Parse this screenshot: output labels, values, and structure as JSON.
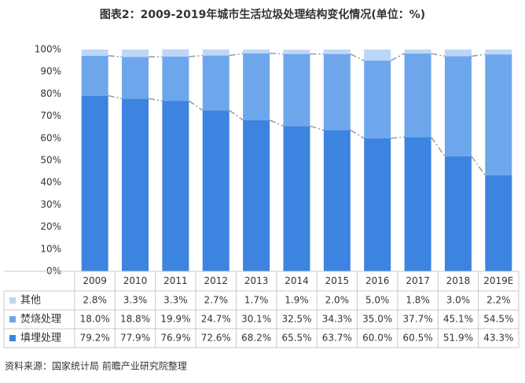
{
  "chart_data": {
    "type": "stacked_bar",
    "title": "图表2：2009-2019年城市生活垃圾处理结构变化情况(单位：%)",
    "categories": [
      "2009",
      "2010",
      "2011",
      "2012",
      "2013",
      "2014",
      "2015",
      "2016",
      "2017",
      "2018",
      "2019E"
    ],
    "series": [
      {
        "name": "其他",
        "color": "#bcd6f7",
        "values": [
          2.8,
          3.3,
          3.3,
          2.7,
          1.7,
          1.9,
          2.0,
          5.0,
          1.8,
          3.0,
          2.2
        ],
        "value_labels": [
          "2.8%",
          "3.3%",
          "3.3%",
          "2.7%",
          "1.7%",
          "1.9%",
          "2.0%",
          "5.0%",
          "1.8%",
          "3.0%",
          "2.2%"
        ]
      },
      {
        "name": "焚烧处理",
        "color": "#6ea6ec",
        "values": [
          18.0,
          18.8,
          19.9,
          24.7,
          30.1,
          32.5,
          34.3,
          35.0,
          37.7,
          45.1,
          54.5
        ],
        "value_labels": [
          "18.0%",
          "18.8%",
          "19.9%",
          "24.7%",
          "30.1%",
          "32.5%",
          "34.3%",
          "35.0%",
          "37.7%",
          "45.1%",
          "54.5%"
        ]
      },
      {
        "name": "填埋处理",
        "color": "#3c84e0",
        "values": [
          79.2,
          77.9,
          76.9,
          72.6,
          68.2,
          65.5,
          63.7,
          60.0,
          60.5,
          51.9,
          43.3
        ],
        "value_labels": [
          "79.2%",
          "77.9%",
          "76.9%",
          "72.6%",
          "68.2%",
          "65.5%",
          "63.7%",
          "60.0%",
          "60.5%",
          "51.9%",
          "43.3%"
        ]
      }
    ],
    "ylim": [
      0,
      100
    ],
    "yticks": [
      {
        "value": 0,
        "label": "0%"
      },
      {
        "value": 10,
        "label": "10%"
      },
      {
        "value": 20,
        "label": "20%"
      },
      {
        "value": 30,
        "label": "30%"
      },
      {
        "value": 40,
        "label": "40%"
      },
      {
        "value": 50,
        "label": "50%"
      },
      {
        "value": 60,
        "label": "60%"
      },
      {
        "value": 70,
        "label": "70%"
      },
      {
        "value": 80,
        "label": "80%"
      },
      {
        "value": 90,
        "label": "90%"
      },
      {
        "value": 100,
        "label": "100%"
      }
    ],
    "source": "资料来源：国家统计局 前瞻产业研究院整理"
  }
}
